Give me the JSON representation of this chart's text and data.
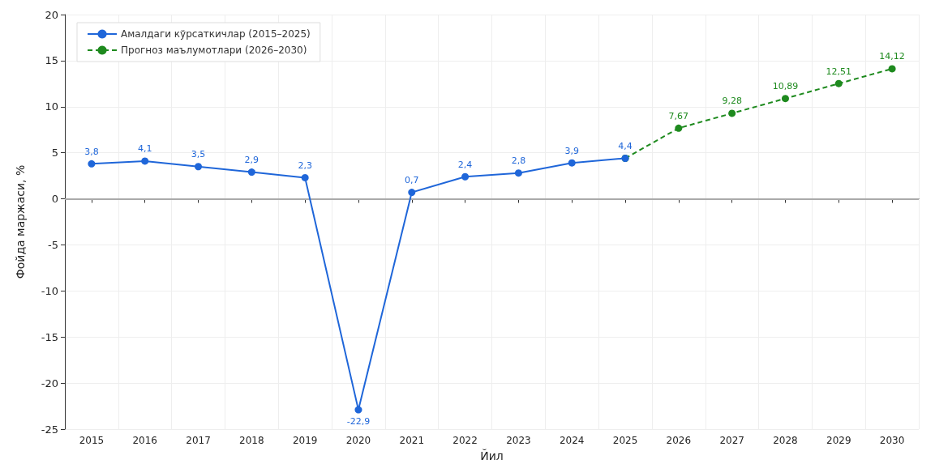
{
  "chart_data": {
    "type": "line",
    "xlabel": "Йил",
    "ylabel": "Фойда маржаси, %",
    "categories": [
      "2015",
      "2016",
      "2017",
      "2018",
      "2019",
      "2020",
      "2021",
      "2022",
      "2023",
      "2024",
      "2025",
      "2026",
      "2027",
      "2028",
      "2029",
      "2030"
    ],
    "series": [
      {
        "name": "Амалдаги кўрсаткичлар (2015–2025)",
        "color": "#1f66d9",
        "line_style": "solid",
        "values": [
          3.8,
          4.1,
          3.5,
          2.9,
          2.3,
          -22.9,
          0.7,
          2.4,
          2.8,
          3.9,
          4.4,
          null,
          null,
          null,
          null,
          null
        ],
        "value_labels": [
          "3,8",
          "4,1",
          "3,5",
          "2,9",
          "2,3",
          "-22,9",
          "0,7",
          "2,4",
          "2,8",
          "3,9",
          "4,4",
          null,
          null,
          null,
          null,
          null
        ]
      },
      {
        "name": "Прогноз маълумотлари (2026–2030)",
        "color": "#1e8a1e",
        "line_style": "dashed",
        "values": [
          null,
          null,
          null,
          null,
          null,
          null,
          null,
          null,
          null,
          null,
          4.4,
          7.67,
          9.28,
          10.89,
          12.51,
          14.12
        ],
        "value_labels": [
          null,
          null,
          null,
          null,
          null,
          null,
          null,
          null,
          null,
          null,
          null,
          "7,67",
          "9,28",
          "10,89",
          "12,51",
          "14,12"
        ]
      }
    ],
    "ylim": [
      -25,
      20
    ],
    "yticks": [
      -25,
      -20,
      -15,
      -10,
      -5,
      0,
      5,
      10,
      15,
      20
    ],
    "ref_lines": [
      {
        "axis": "y",
        "value": 0,
        "color": "#aaaaaa"
      }
    ],
    "grid": true,
    "legend": "top left",
    "marker": "circle"
  }
}
